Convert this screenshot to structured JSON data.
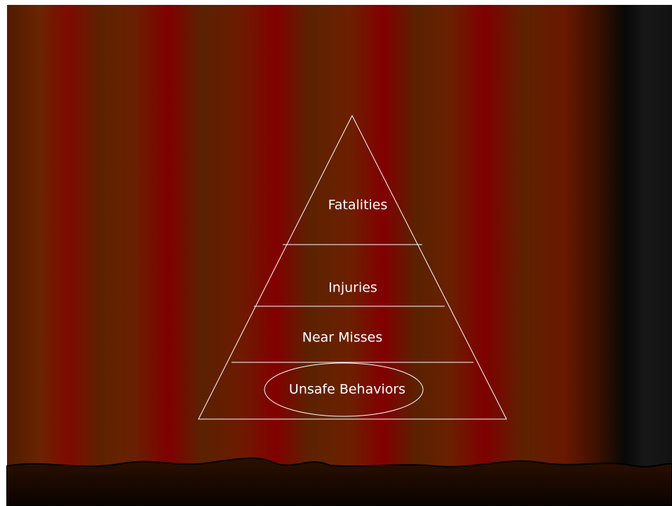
{
  "pyramid": {
    "levels": [
      "Fatalities",
      "Injuries",
      "Near Misses",
      "Unsafe Behaviors"
    ]
  }
}
